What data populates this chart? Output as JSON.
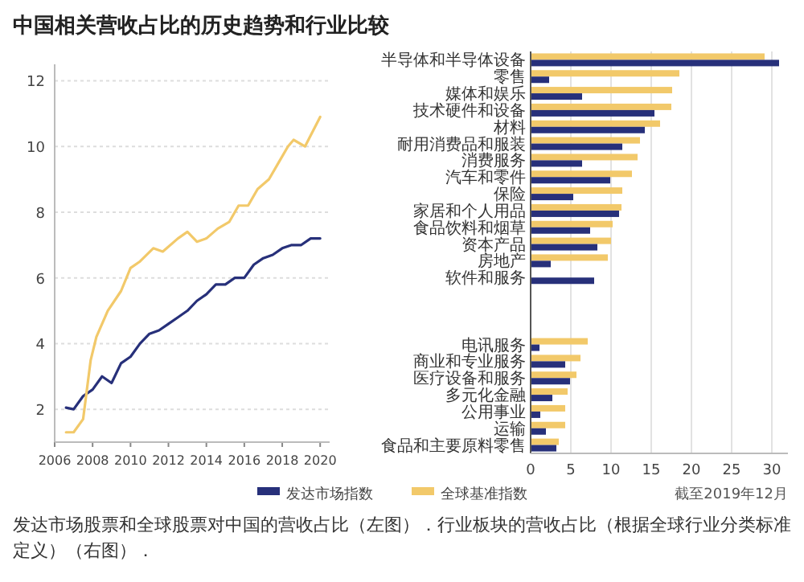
{
  "chart_data": [
    {
      "type": "line",
      "title": "中国相关营收占比的历史趋势和行业比较",
      "xlim": [
        2006,
        2020.5
      ],
      "xticks": [
        2006,
        2008,
        2010,
        2012,
        2014,
        2016,
        2018,
        2020
      ],
      "ylim": [
        1,
        12.5
      ],
      "yticks": [
        2,
        4,
        6,
        8,
        10,
        12
      ],
      "grid": "y",
      "legend": "bottom",
      "series": [
        {
          "name": "发达市场指数",
          "color": "#27307a",
          "x": [
            2006.6,
            2007.0,
            2007.5,
            2008.0,
            2008.5,
            2009.0,
            2009.5,
            2010.0,
            2010.5,
            2011.0,
            2011.5,
            2012.0,
            2012.5,
            2013.0,
            2013.5,
            2014.0,
            2014.5,
            2015.0,
            2015.5,
            2016.0,
            2016.5,
            2017.0,
            2017.5,
            2018.0,
            2018.5,
            2019.0,
            2019.5,
            2020.0
          ],
          "values": [
            2.05,
            2.0,
            2.4,
            2.6,
            3.0,
            2.8,
            3.4,
            3.6,
            4.0,
            4.3,
            4.4,
            4.6,
            4.8,
            5.0,
            5.3,
            5.5,
            5.8,
            5.8,
            6.0,
            6.0,
            6.4,
            6.6,
            6.7,
            6.9,
            7.0,
            7.0,
            7.2,
            7.2
          ]
        },
        {
          "name": "全球基准指数",
          "color": "#f2c96a",
          "x": [
            2006.6,
            2007.0,
            2007.5,
            2007.9,
            2008.2,
            2008.8,
            2009.5,
            2010.0,
            2010.5,
            2011.2,
            2011.7,
            2012.5,
            2013.0,
            2013.5,
            2014.0,
            2014.6,
            2015.2,
            2015.7,
            2016.2,
            2016.7,
            2017.3,
            2017.8,
            2018.3,
            2018.6,
            2019.2,
            2020.0
          ],
          "values": [
            1.3,
            1.3,
            1.7,
            3.5,
            4.2,
            5.0,
            5.6,
            6.3,
            6.5,
            6.9,
            6.8,
            7.2,
            7.4,
            7.1,
            7.2,
            7.5,
            7.7,
            8.2,
            8.2,
            8.7,
            9.0,
            9.5,
            10.0,
            10.2,
            10.0,
            10.9
          ]
        }
      ]
    },
    {
      "type": "bar",
      "orientation": "horizontal",
      "categories": [
        "半导体和半导体设备",
        "零售",
        "媒体和娱乐",
        "技术硬件和设备",
        "材料",
        "耐用消费品和服装",
        "消费服务",
        "汽车和零件",
        "保险",
        "家居和个人用品",
        "食品饮料和烟草",
        "资本产品",
        "房地产",
        "软件和服务",
        null,
        null,
        null,
        "电讯服务",
        "商业和专业服务",
        "医疗设备和服务",
        "多元化金融",
        "公用事业",
        "运输",
        "食品和主要原料零售"
      ],
      "xlim": [
        0,
        32
      ],
      "xticks": [
        0,
        5,
        10,
        15,
        20,
        25,
        30
      ],
      "grid": "x",
      "legend": "bottom",
      "series": [
        {
          "name": "全球基准指数",
          "color": "#f2c96a",
          "values": [
            29.1,
            18.5,
            17.6,
            17.5,
            16.1,
            13.6,
            13.3,
            12.6,
            11.4,
            11.3,
            10.2,
            10.0,
            9.6,
            null,
            null,
            null,
            null,
            7.1,
            6.2,
            5.7,
            4.6,
            4.3,
            4.3,
            3.5
          ]
        },
        {
          "name": "发达市场指数",
          "color": "#27307a",
          "values": [
            30.9,
            2.3,
            6.4,
            15.4,
            14.2,
            11.4,
            6.4,
            9.9,
            5.3,
            11.0,
            7.4,
            8.3,
            2.5,
            7.9,
            null,
            null,
            null,
            1.1,
            4.3,
            4.9,
            2.7,
            1.2,
            1.9,
            3.2
          ]
        }
      ],
      "annotations": [
        "截至2019年12月",
        "发达市场股票和全球股票对中国的营收占比（左图）．行业板块的营收占比（根据全球行业分类标准定义）（右图）．"
      ]
    }
  ]
}
